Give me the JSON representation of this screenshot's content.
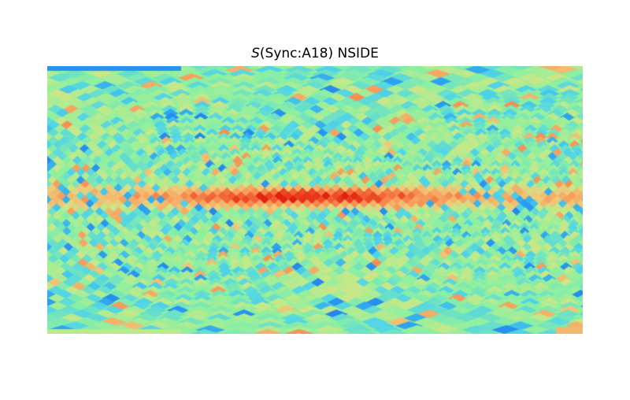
{
  "title": {
    "symbol": "S",
    "rest": "(Sync:A18) NSIDE"
  },
  "map": {
    "projection": "equirectangular",
    "colormap": "rainbow",
    "colors": {
      "background": "#8ef0a0",
      "low_blue": "#1e6ef0",
      "cyan": "#3cc8f0",
      "mid_green": "#8ef0a0",
      "yellow": "#e6d878",
      "orange": "#f8a868",
      "red": "#f04020"
    }
  }
}
